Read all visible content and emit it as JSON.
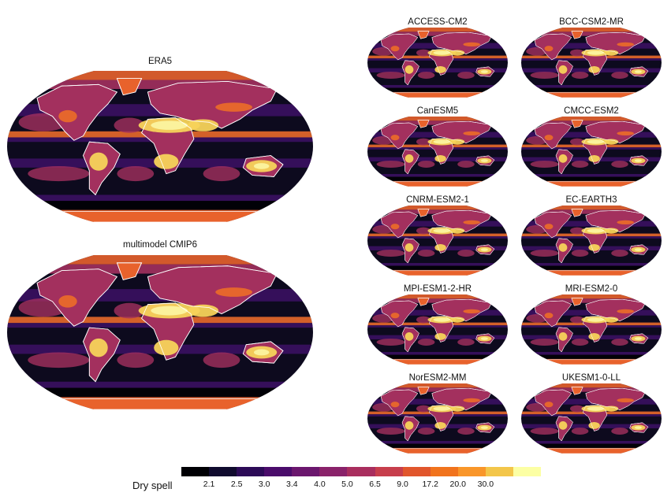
{
  "maps": [
    {
      "id": "era5",
      "title": "ERA5"
    },
    {
      "id": "multimodel",
      "title": "multimodel  CMIP6"
    },
    {
      "id": "access",
      "title": "ACCESS-CM2"
    },
    {
      "id": "bcc",
      "title": "BCC-CSM2-MR"
    },
    {
      "id": "canesm",
      "title": "CanESM5"
    },
    {
      "id": "cmcc",
      "title": "CMCC-ESM2"
    },
    {
      "id": "cnrm",
      "title": "CNRM-ESM2-1"
    },
    {
      "id": "ecearth",
      "title": "EC-EARTH3"
    },
    {
      "id": "mpi",
      "title": "MPI-ESM1-2-HR"
    },
    {
      "id": "mri",
      "title": "MRI-ESM2-0"
    },
    {
      "id": "noresm",
      "title": "NorESM2-MM"
    },
    {
      "id": "ukesm",
      "title": "UKESM1-0-LL"
    }
  ],
  "colorbar": {
    "label": "Dry spell",
    "ticks": [
      "2.1",
      "2.5",
      "3.0",
      "3.4",
      "4.0",
      "5.0",
      "6.5",
      "9.0",
      "17.2",
      "20.0",
      "30.0"
    ],
    "colors": [
      "#000004",
      "#100b2e",
      "#2c0b57",
      "#4a0c6b",
      "#6b176e",
      "#8a226a",
      "#a92e5e",
      "#c73e4c",
      "#e1562c",
      "#f1731d",
      "#f9962a",
      "#f3c64a",
      "#fcffa4"
    ]
  },
  "palette": {
    "ocean_dark": "#0d0a1e",
    "ocean_band": "#3a1060",
    "land_mid": "#a3305e",
    "land_high": "#e9692a",
    "desert": "#f7d35a",
    "desert_peak": "#fbf3a0",
    "polar": "#e8622c",
    "coast": "#ffffff"
  }
}
